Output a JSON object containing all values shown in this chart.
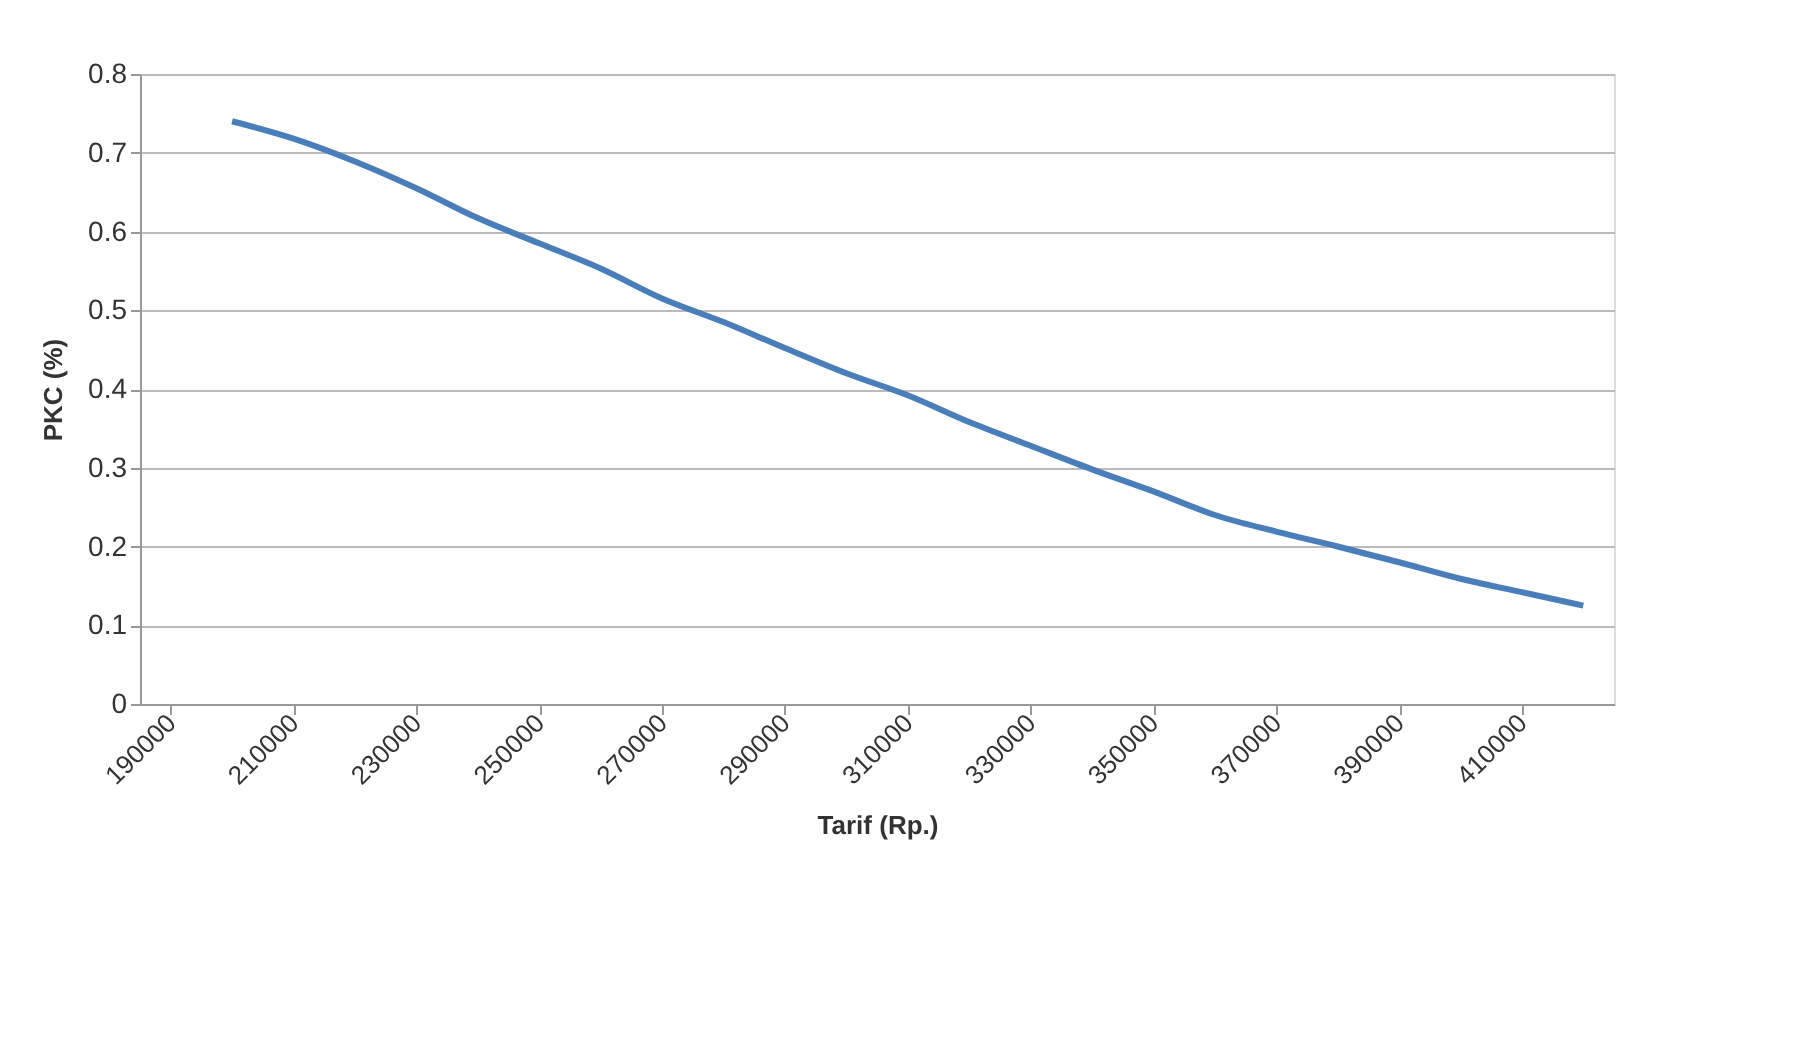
{
  "chart_data": {
    "type": "line",
    "xlabel": "Tarif (Rp.)",
    "ylabel": "PKC (%)",
    "x": [
      200000,
      210000,
      220000,
      230000,
      240000,
      250000,
      260000,
      270000,
      280000,
      290000,
      300000,
      310000,
      320000,
      330000,
      340000,
      350000,
      360000,
      370000,
      380000,
      390000,
      400000,
      410000,
      420000
    ],
    "series": [
      {
        "color": "#4a7ebb",
        "values": [
          0.74,
          0.718,
          0.689,
          0.655,
          0.617,
          0.585,
          0.553,
          0.515,
          0.485,
          0.452,
          0.42,
          0.392,
          0.358,
          0.328,
          0.298,
          0.27,
          0.24,
          0.219,
          0.2,
          0.18,
          0.159,
          0.142,
          0.125
        ]
      }
    ],
    "xlim": [
      185000,
      425000
    ],
    "xticks": [
      190000,
      210000,
      230000,
      250000,
      270000,
      290000,
      310000,
      330000,
      350000,
      370000,
      390000,
      410000
    ],
    "ylim": [
      0,
      0.8
    ],
    "yticks": [
      0,
      0.1,
      0.2,
      0.3,
      0.4,
      0.5,
      0.6,
      0.7,
      0.8
    ],
    "grid": "y",
    "legend": false,
    "marker": "none",
    "line_style": "solid"
  }
}
